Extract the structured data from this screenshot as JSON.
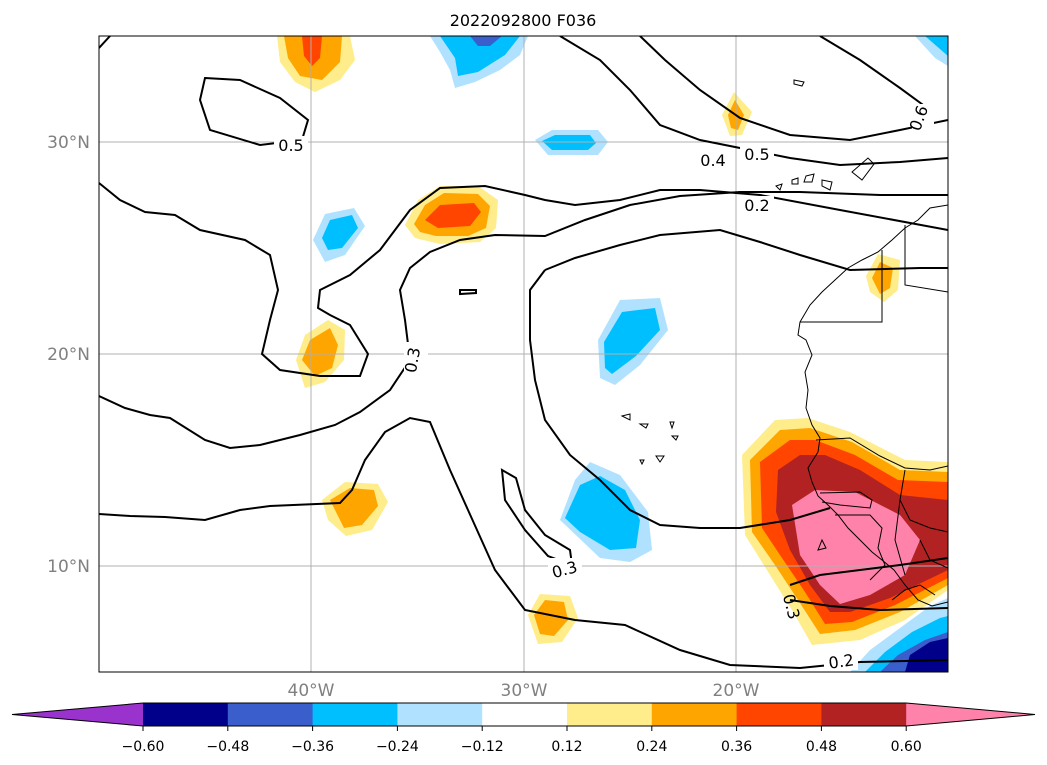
{
  "title": "2022092800 F036",
  "map": {
    "lat_labels": [
      "30°N",
      "20°N",
      "10°N"
    ],
    "lon_labels": [
      "40°W",
      "30°W",
      "20°W"
    ],
    "gridlines": true
  },
  "contour_labels": [
    "0.5",
    "0.4",
    "0.5",
    "0.6",
    "0.2",
    "0.3",
    "0.3",
    "0.3",
    "0.2"
  ],
  "colorbar": {
    "extend": "both",
    "levels": [
      "−0.60",
      "−0.48",
      "−0.36",
      "−0.24",
      "−0.12",
      "0.12",
      "0.24",
      "0.36",
      "0.48",
      "0.60"
    ],
    "colors": [
      "#9a32cd",
      "#00008b",
      "#3a5fcd",
      "#00bfff",
      "#b0e2ff",
      "#ffffff",
      "#ffec8b",
      "#ffa500",
      "#ff4500",
      "#b22222",
      "#ff82ab"
    ]
  }
}
